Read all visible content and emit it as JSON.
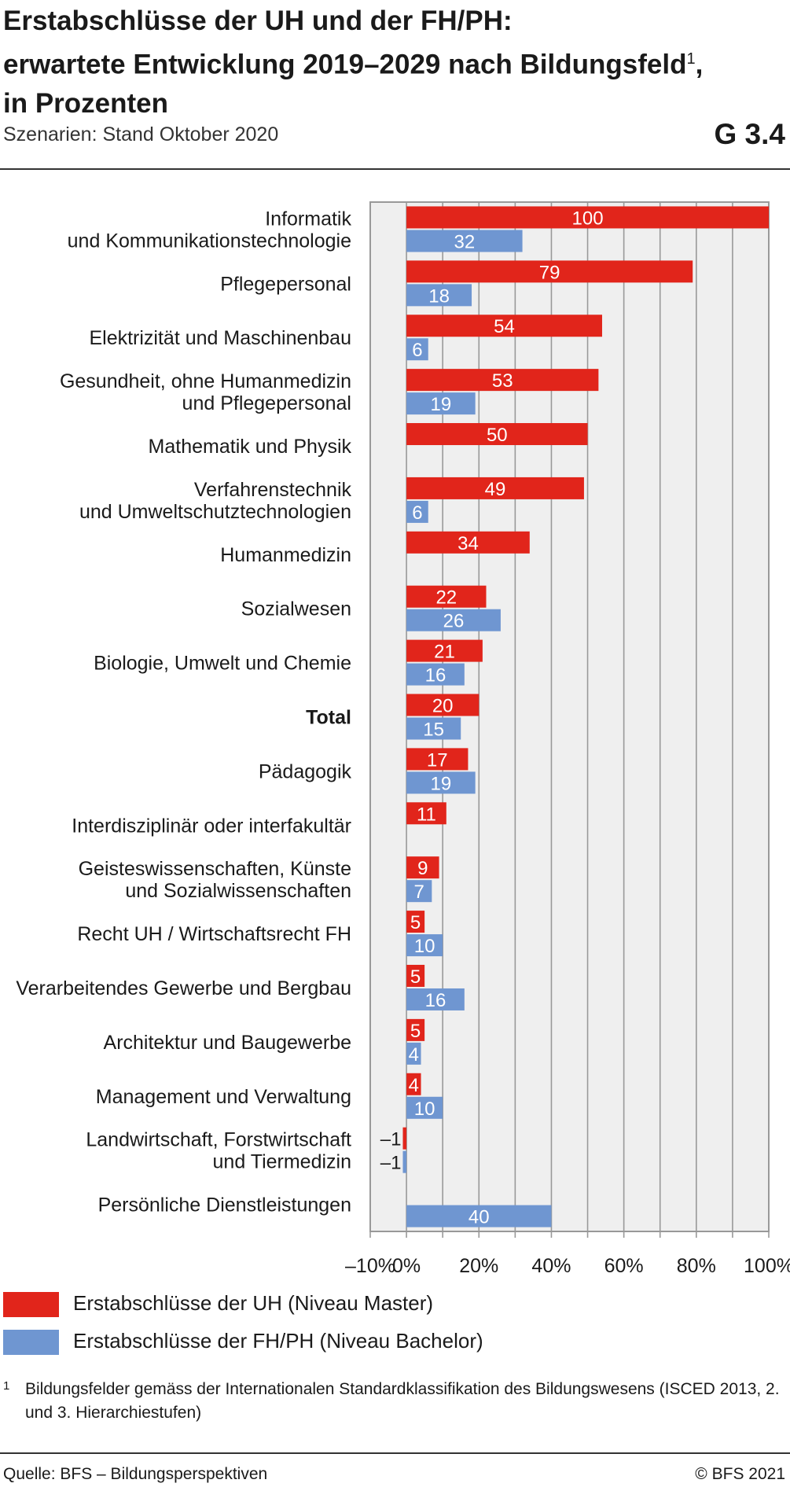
{
  "header": {
    "title_line1": "Erstabschlüsse der UH und der FH/PH:",
    "title_line2": "erwartete Entwicklung 2019–2029 nach Bildungsfeld",
    "title_footnote_ref": "1",
    "title_line2_end": ",",
    "title_line3": "in Prozenten",
    "subtitle": "Szenarien: Stand Oktober 2020",
    "code": "G 3.4"
  },
  "chart_data": {
    "type": "bar",
    "orientation": "horizontal",
    "xlim": [
      -10,
      100
    ],
    "xticks": [
      -10,
      0,
      20,
      40,
      60,
      80,
      100
    ],
    "xtick_labels": [
      "–10%",
      "0%",
      "20%",
      "40%",
      "60%",
      "80%",
      "100%"
    ],
    "grid": true,
    "legend_position": "bottom-left",
    "colors": {
      "uh": "#e1251b",
      "fh": "#6f96d1",
      "plot_bg": "#efefef",
      "grid": "#999999"
    },
    "categories": [
      {
        "label": [
          "Informatik",
          "und Kommunikationstechnologie"
        ],
        "bold": false
      },
      {
        "label": [
          "Pflegepersonal"
        ],
        "bold": false
      },
      {
        "label": [
          "Elektrizität und Maschinenbau"
        ],
        "bold": false
      },
      {
        "label": [
          "Gesundheit, ohne Humanmedizin",
          "und Pflegepersonal"
        ],
        "bold": false
      },
      {
        "label": [
          "Mathematik und Physik"
        ],
        "bold": false
      },
      {
        "label": [
          "Verfahrenstechnik",
          "und Umweltschutztechnologien"
        ],
        "bold": false
      },
      {
        "label": [
          "Humanmedizin"
        ],
        "bold": false
      },
      {
        "label": [
          "Sozialwesen"
        ],
        "bold": false
      },
      {
        "label": [
          "Biologie, Umwelt und Chemie"
        ],
        "bold": false
      },
      {
        "label": [
          "Total"
        ],
        "bold": true
      },
      {
        "label": [
          "Pädagogik"
        ],
        "bold": false
      },
      {
        "label": [
          "Interdisziplinär oder interfakultär"
        ],
        "bold": false
      },
      {
        "label": [
          "Geisteswissenschaften, Künste",
          "und Sozialwissenschaften"
        ],
        "bold": false
      },
      {
        "label": [
          "Recht UH / Wirtschaftsrecht FH"
        ],
        "bold": false
      },
      {
        "label": [
          "Verarbeitendes Gewerbe und Bergbau"
        ],
        "bold": false
      },
      {
        "label": [
          "Architektur und Baugewerbe"
        ],
        "bold": false
      },
      {
        "label": [
          "Management und Verwaltung"
        ],
        "bold": false
      },
      {
        "label": [
          "Landwirtschaft, Forstwirtschaft",
          "und Tiermedizin"
        ],
        "bold": false
      },
      {
        "label": [
          "Persönliche Dienstleistungen"
        ],
        "bold": false
      }
    ],
    "series": [
      {
        "name": "Erstabschlüsse der UH (Niveau Master)",
        "key": "uh",
        "values": [
          100,
          79,
          54,
          53,
          50,
          49,
          34,
          22,
          21,
          20,
          17,
          11,
          9,
          5,
          5,
          5,
          4,
          -1,
          null
        ],
        "value_labels": [
          "100",
          "79",
          "54",
          "53",
          "50",
          "49",
          "34",
          "22",
          "21",
          "20",
          "17",
          "11",
          "9",
          "5",
          "5",
          "5",
          "4",
          "–1",
          ""
        ]
      },
      {
        "name": "Erstabschlüsse der FH/PH (Niveau Bachelor)",
        "key": "fh",
        "values": [
          32,
          18,
          6,
          19,
          null,
          6,
          null,
          26,
          16,
          15,
          19,
          null,
          7,
          10,
          16,
          4,
          10,
          -1,
          40
        ],
        "value_labels": [
          "32",
          "18",
          "6",
          "19",
          "",
          "6",
          "",
          "26",
          "16",
          "15",
          "19",
          "",
          "7",
          "10",
          "16",
          "4",
          "10",
          "–1",
          "40"
        ]
      }
    ]
  },
  "legend": {
    "uh_label": "Erstabschlüsse der UH (Niveau Master)",
    "fh_label": "Erstabschlüsse der FH/PH (Niveau Bachelor)",
    "uh_color": "#e1251b",
    "fh_color": "#6f96d1"
  },
  "footnote": {
    "mark": "1",
    "text": "Bildungsfelder gemäss der Internationalen Standardklassifikation des Bildungswesens (ISCED 2013, 2. und 3. Hierarchiestufen)"
  },
  "footer": {
    "source": "Quelle: BFS – Bildungsperspektiven",
    "copyright": "© BFS 2021"
  }
}
